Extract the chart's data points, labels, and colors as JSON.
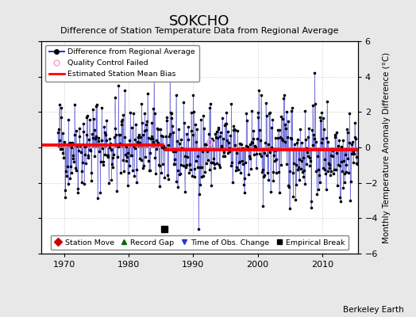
{
  "title": "SOKCHO",
  "subtitle": "Difference of Station Temperature Data from Regional Average",
  "ylabel": "Monthly Temperature Anomaly Difference (°C)",
  "xlabel_credit": "Berkeley Earth",
  "ylim": [
    -6,
    6
  ],
  "xlim": [
    1966.5,
    2015.5
  ],
  "yticks": [
    -6,
    -4,
    -2,
    0,
    2,
    4,
    6
  ],
  "xticks": [
    1970,
    1980,
    1990,
    2000,
    2010
  ],
  "bias_line1_x": [
    1966,
    1985.5
  ],
  "bias_line1_y": [
    0.15,
    0.15
  ],
  "bias_line2_x": [
    1985.5,
    2016
  ],
  "bias_line2_y": [
    -0.15,
    -0.15
  ],
  "empirical_break_x": 1985.5,
  "empirical_break_y": -4.6,
  "line_color": "#3333CC",
  "marker_color": "#000000",
  "qc_color": "#FF99CC",
  "bias_color": "#FF0000",
  "bg_color": "#E8E8E8",
  "plot_bg_color": "#FFFFFF",
  "grid_color": "#CCCCCC",
  "seed": 42,
  "start_year": 1969.0,
  "n_points": 558
}
